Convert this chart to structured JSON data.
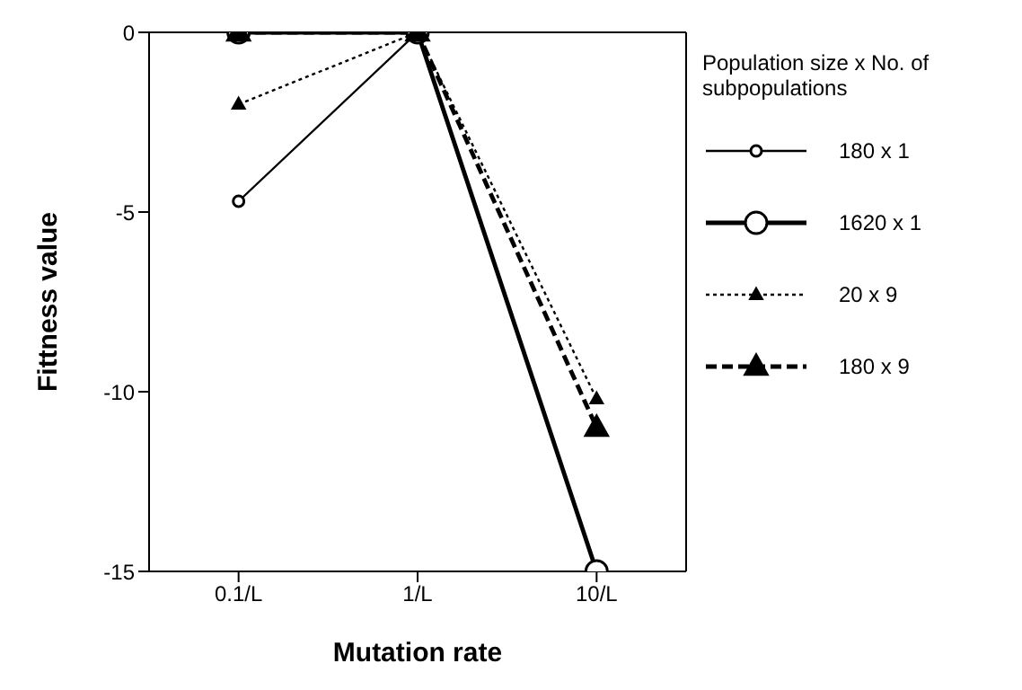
{
  "chart_data": {
    "type": "line",
    "xlabel": "Mutation rate",
    "ylabel": "Fittness value",
    "legend_title": "Population size x No. of subpopulations",
    "categories": [
      "0.1/L",
      "1/L",
      "10/L"
    ],
    "ylim": [
      -15,
      0
    ],
    "yticks": [
      0,
      -5,
      -10,
      -15
    ],
    "grid": false,
    "legend": "right",
    "series": [
      {
        "name": "180 x 1",
        "color": "#000000",
        "values": [
          -4.7,
          0,
          -15
        ],
        "marker": "circle",
        "line_style": "solid"
      },
      {
        "name": "1620 x 1",
        "color": "#000000",
        "values": [
          0,
          0,
          -15
        ],
        "marker": "circle",
        "line_style": "solid"
      },
      {
        "name": "20 x 9",
        "color": "#000000",
        "values": [
          -2,
          0,
          -10.2
        ],
        "marker": "triangle",
        "line_style": "dotted"
      },
      {
        "name": "180 x 9",
        "color": "#000000",
        "values": [
          0,
          0,
          -11
        ],
        "marker": "triangle",
        "line_style": "dashed"
      }
    ]
  }
}
